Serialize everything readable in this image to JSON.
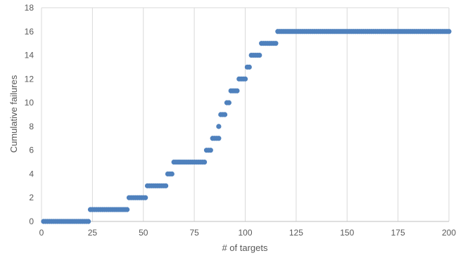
{
  "chart_data": {
    "type": "scatter",
    "xlabel": "# of targets",
    "ylabel": "Cumulative failures",
    "xlim": [
      0,
      200
    ],
    "ylim": [
      0,
      18
    ],
    "x_ticks": [
      0,
      25,
      50,
      75,
      100,
      125,
      150,
      175,
      200
    ],
    "y_ticks": [
      0,
      2,
      4,
      6,
      8,
      10,
      12,
      14,
      16,
      18
    ],
    "grid": {
      "vertical": true,
      "horizontal": false
    },
    "marker_color": "#4F81BD",
    "steps": [
      {
        "y": 0,
        "x_start": 1,
        "x_end": 23
      },
      {
        "y": 1,
        "x_start": 24,
        "x_end": 42
      },
      {
        "y": 2,
        "x_start": 43,
        "x_end": 51
      },
      {
        "y": 3,
        "x_start": 52,
        "x_end": 61
      },
      {
        "y": 4,
        "x_start": 62,
        "x_end": 64
      },
      {
        "y": 5,
        "x_start": 65,
        "x_end": 80
      },
      {
        "y": 6,
        "x_start": 81,
        "x_end": 83
      },
      {
        "y": 7,
        "x_start": 84,
        "x_end": 87
      },
      {
        "y": 8,
        "x_start": 87,
        "x_end": 87
      },
      {
        "y": 9,
        "x_start": 88,
        "x_end": 90
      },
      {
        "y": 10,
        "x_start": 91,
        "x_end": 92
      },
      {
        "y": 11,
        "x_start": 93,
        "x_end": 96
      },
      {
        "y": 12,
        "x_start": 97,
        "x_end": 100
      },
      {
        "y": 13,
        "x_start": 101,
        "x_end": 102
      },
      {
        "y": 14,
        "x_start": 103,
        "x_end": 107
      },
      {
        "y": 15,
        "x_start": 108,
        "x_end": 115
      },
      {
        "y": 16,
        "x_start": 116,
        "x_end": 200
      }
    ]
  }
}
